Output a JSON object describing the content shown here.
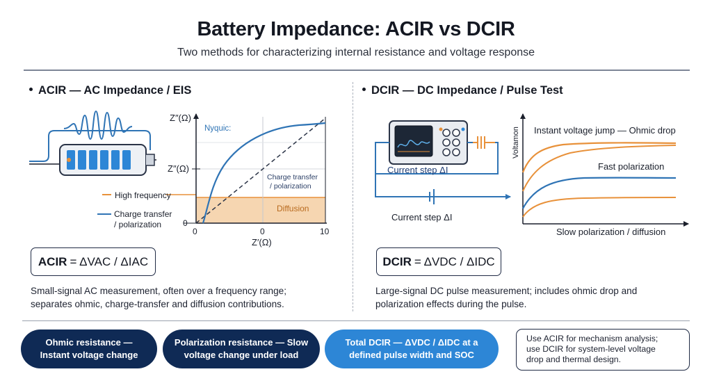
{
  "header": {
    "title": "Battery Impedance: ACIR vs DCIR",
    "subtitle": "Two methods for characterizing internal resistance and voltage response"
  },
  "acir": {
    "heading": "ACIR — AC Impedance / EIS",
    "nyquist": {
      "y_axis_label_top": "Z″(Ω)",
      "y_axis_label_mid": "Z″(Ω)",
      "x_axis_label": "Z′(Ω)",
      "tick_x0": "0",
      "tick_x_mid": "0",
      "tick_x_max": "10",
      "tick_y0": "0",
      "curve_label": "Nyquic:",
      "charge_transfer_label_1": "Charge transfer",
      "charge_transfer_label_2": "/ polarization",
      "diffusion_label": "Diffusion"
    },
    "legend": {
      "high_frequency": "High frequency",
      "charge_transfer_1": "Charge transfer",
      "charge_transfer_2": "/ polarization"
    },
    "formula": {
      "lhs": "ACIR",
      "rhs": "= ΔVAC / ΔIAC"
    },
    "description_1": "Small-signal AC measurement, often over a frequency range;",
    "description_2": "separates ohmic, charge-transfer and diffusion contributions."
  },
  "dcir": {
    "heading": "DCIR — DC Impedance / Pulse Test",
    "circuit": {
      "current_step_upper": "Current step ΔI",
      "current_step_lower": "Current step ΔI"
    },
    "plot": {
      "y_axis_label": "Voltamon",
      "x_axis_label": "Slow polarization / diffusion",
      "label_instant": "Instant voltage jump — Ohmic drop",
      "label_fast": "Fast polarization"
    },
    "formula": {
      "lhs": "DCIR",
      "rhs": "= ΔVDC / ΔIDC"
    },
    "description_1": "Large-signal DC pulse measurement; includes ohmic drop and",
    "description_2": "polarization effects during the pulse."
  },
  "footer": {
    "pill_1_line_1": "Ohmic resistance —",
    "pill_1_line_2": "Instant voltage change",
    "pill_2_line_1": "Polarization resistance — Slow",
    "pill_2_line_2": "voltage change under load",
    "pill_3_line_1": "Total DCIR — ΔVDC / ΔIDC at a",
    "pill_3_line_2": "defined pulse width and SOC",
    "note_line_1": "Use ACIR for mechanism analysis;",
    "note_line_2": "use DCIR for system-level voltage",
    "note_line_3": "drop and thermal design."
  },
  "colors": {
    "navy": "#0f2a55",
    "blue": "#2f74b5",
    "bright_blue": "#2d86d6",
    "orange": "#e8913a",
    "orange_fill": "#f6d6b1"
  }
}
